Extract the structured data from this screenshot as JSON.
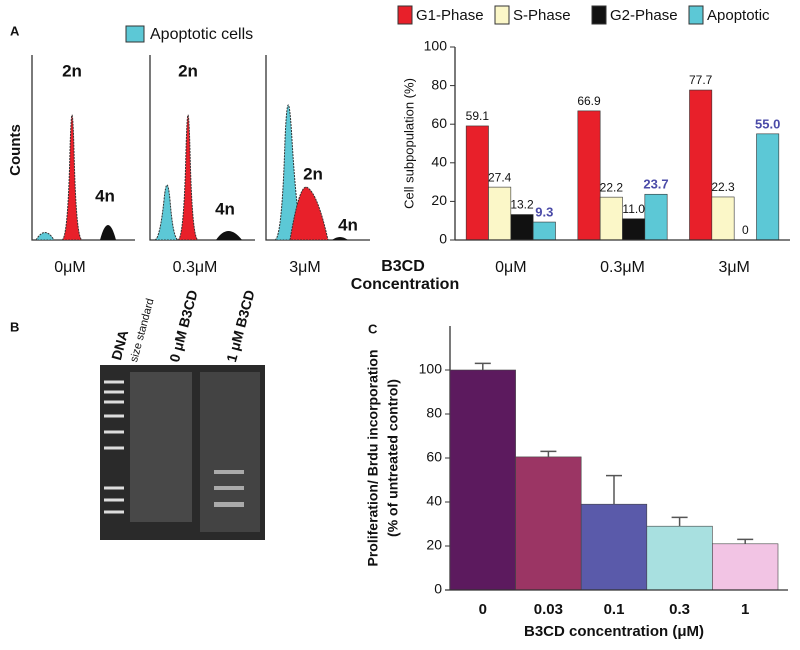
{
  "panel_labels": [
    "A",
    "B",
    "C"
  ],
  "flow_cytometry": {
    "legend": "Apoptotic cells",
    "y_label": "Counts",
    "histograms": [
      {
        "dose": "0μM",
        "peaks": [
          "2n",
          "4n"
        ]
      },
      {
        "dose": "0.3μM",
        "peaks": [
          "2n",
          "4n"
        ]
      },
      {
        "dose": "3μM",
        "peaks": [
          "2n",
          "4n"
        ]
      }
    ],
    "group_label": [
      "B3CD",
      "Concentration"
    ]
  },
  "gel": {
    "lanes": [
      "DNA",
      "size standard",
      "0 μM  B3CD",
      "1 μM  B3CD"
    ]
  },
  "chart_data": [
    {
      "type": "bar",
      "y_label": "Cell subpopulation (%)",
      "categories": [
        "0μM",
        "0.3μM",
        "3μM"
      ],
      "series": [
        {
          "name": "G1-Phase",
          "color": "#e8202a",
          "values": [
            59.1,
            66.9,
            77.7
          ],
          "value_labels": [
            "59.1",
            "66.9",
            "77.7"
          ]
        },
        {
          "name": "S-Phase",
          "color": "#fbf7c8",
          "values": [
            27.4,
            22.2,
            22.3
          ],
          "value_labels": [
            "27.4",
            "22.2",
            "22.3"
          ]
        },
        {
          "name": "G2-Phase",
          "color": "#111111",
          "values": [
            13.2,
            11.0,
            0
          ],
          "value_labels": [
            "13.2",
            "11.0",
            "0"
          ]
        },
        {
          "name": "Apoptotic",
          "color": "#5cc8d6",
          "label_color": "#4b4ba8",
          "values": [
            9.3,
            23.7,
            55.0
          ],
          "value_labels": [
            "9.3",
            "23.7",
            "55.0"
          ]
        }
      ],
      "ylim": [
        0,
        100
      ],
      "yticks": [
        0,
        20,
        40,
        60,
        80,
        100
      ]
    },
    {
      "type": "bar",
      "x_label": "B3CD concentration (μM)",
      "y_label": [
        "Proliferation/ Brdu incorporation",
        "(% of untreated control)"
      ],
      "categories": [
        "0",
        "0.03",
        "0.1",
        "0.3",
        "1"
      ],
      "values": [
        100,
        60.5,
        39,
        29,
        21
      ],
      "errors": [
        3,
        2.5,
        13,
        4,
        2
      ],
      "colors": [
        "#5c1a5e",
        "#9b3564",
        "#5a5aaa",
        "#a8e0e0",
        "#f2c4e4"
      ],
      "ylim": [
        0,
        120
      ],
      "yticks": [
        0,
        20,
        40,
        60,
        80,
        100
      ]
    }
  ]
}
